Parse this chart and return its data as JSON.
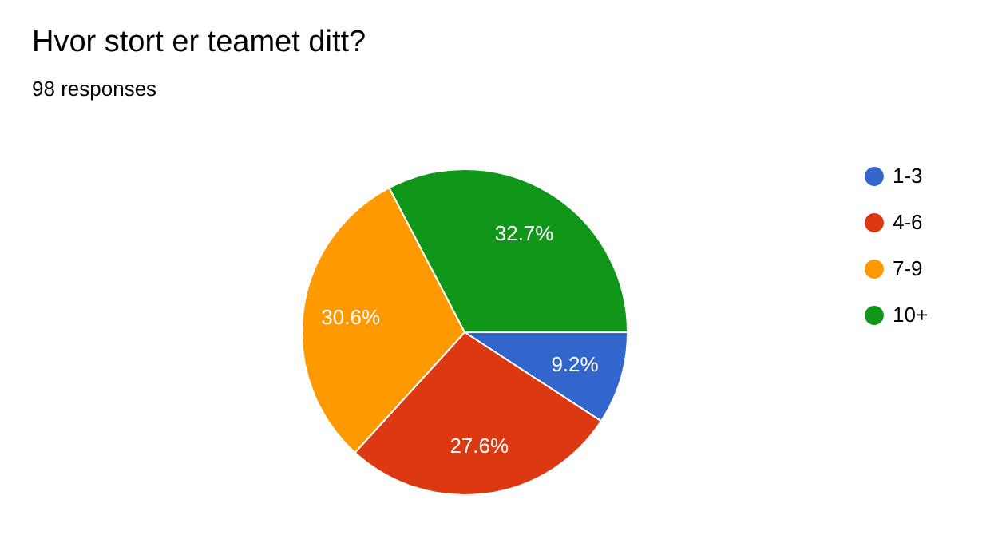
{
  "chart_data": {
    "type": "pie",
    "title": "Hvor stort er teamet ditt?",
    "subtitle": "98 responses",
    "categories": [
      "1-3",
      "4-6",
      "7-9",
      "10+"
    ],
    "values": [
      9.2,
      27.6,
      30.6,
      32.7
    ],
    "colors": [
      "#3366cc",
      "#dc3912",
      "#ff9900",
      "#109618"
    ],
    "value_labels": [
      "9.2%",
      "27.6%",
      "30.6%",
      "32.7%"
    ],
    "legend": "right"
  }
}
